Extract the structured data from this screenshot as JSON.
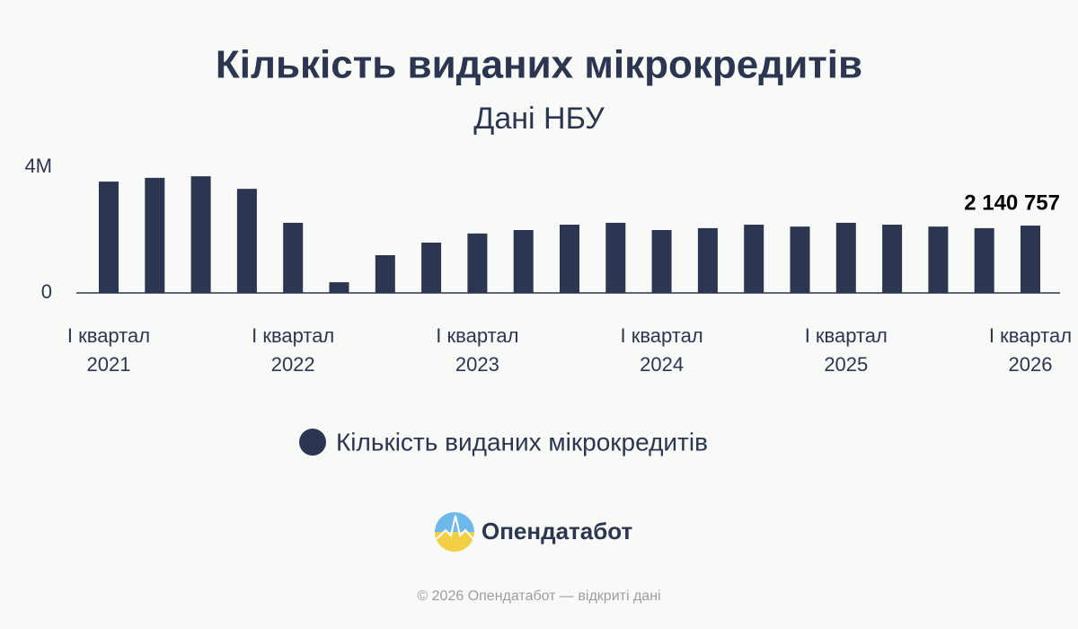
{
  "chart_data": {
    "type": "bar",
    "title": "Кількість виданих мікрокредитів",
    "subtitle": "Дані НБУ",
    "categories": [
      "І квартал 2021",
      null,
      null,
      null,
      "І квартал 2022",
      null,
      null,
      null,
      "І квартал 2023",
      null,
      null,
      null,
      "І квартал 2024",
      null,
      null,
      null,
      "І квартал 2025",
      null,
      null,
      null,
      "І квартал 2026"
    ],
    "series": [
      {
        "name": "Кількість виданих мікрокредитів",
        "color": "#2d3650",
        "values": [
          3540000,
          3660000,
          3710000,
          3310000,
          2230000,
          340000,
          1200000,
          1600000,
          1890000,
          2000000,
          2170000,
          2230000,
          2000000,
          2060000,
          2170000,
          2110000,
          2230000,
          2170000,
          2110000,
          2060000,
          2140757
        ],
        "value_labels": [
          null,
          null,
          null,
          null,
          null,
          null,
          null,
          null,
          null,
          null,
          null,
          null,
          null,
          null,
          null,
          null,
          null,
          null,
          null,
          null,
          "2 140 757"
        ]
      }
    ],
    "ylim": [
      0,
      4000000
    ],
    "yticks": [
      0,
      {
        "value": 4000000,
        "label": "4M"
      }
    ],
    "grid": false,
    "legend": "bottom"
  },
  "brand": "Опендатабот",
  "footer": "© 2026 Опендатабот — відкриті дані"
}
